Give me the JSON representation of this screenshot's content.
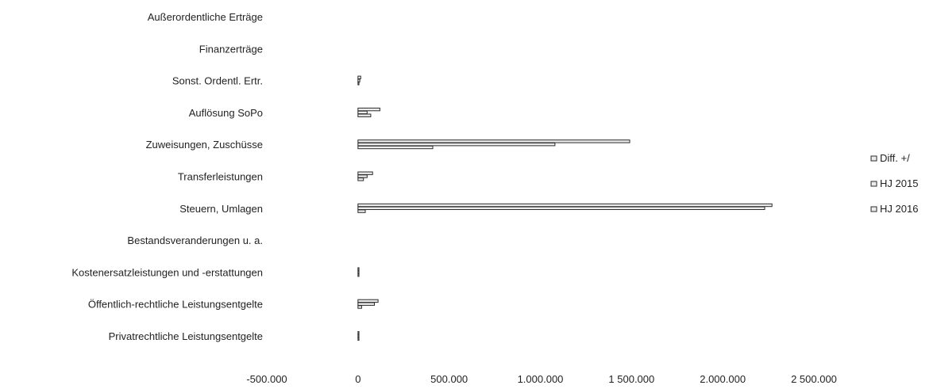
{
  "chart_data": {
    "type": "bar",
    "orientation": "horizontal",
    "categories": [
      "Außerordentliche Erträge",
      "Finanzerträge",
      "Sonst. Ordentl. Ertr.",
      "Auflösung SoPo",
      "Zuweisungen, Zuschüsse",
      "Transferleistungen",
      "Steuern, Umlagen",
      "Bestandsveranderungen u. a.",
      "Kostenersatzleistungen und -erstattungen",
      "Öffentlich-rechtliche Leistungsentgelte",
      "Privatrechtliche Leistungsentgelte"
    ],
    "series": [
      {
        "name": "HJ 2016",
        "values": [
          0,
          0,
          15000,
          120000,
          1490000,
          80000,
          2270000,
          0,
          5000,
          110000,
          5000
        ]
      },
      {
        "name": "HJ 2015",
        "values": [
          0,
          0,
          10000,
          50000,
          1080000,
          50000,
          2230000,
          0,
          3000,
          90000,
          3000
        ]
      },
      {
        "name": "Diff. +/",
        "values": [
          0,
          0,
          5000,
          70000,
          410000,
          30000,
          40000,
          0,
          2000,
          20000,
          2000
        ]
      }
    ],
    "xticks": [
      "-500.000",
      "0",
      "500.000",
      "1.000.000",
      "1 500.000",
      "2.000.000",
      "2 500.000"
    ],
    "xlim": [
      -500000,
      2500000
    ],
    "legend_order": [
      "Diff. +/",
      "HJ 2015",
      "HJ 2016"
    ],
    "legend_labels": [
      "Diff. +/",
      "HJ 2015",
      "HJ 2016"
    ],
    "legend_position": "right",
    "grid": false,
    "colors": {
      "bar_fill": "#ececec",
      "bar_stroke": "#2a2a2a",
      "text": "#222222"
    }
  }
}
